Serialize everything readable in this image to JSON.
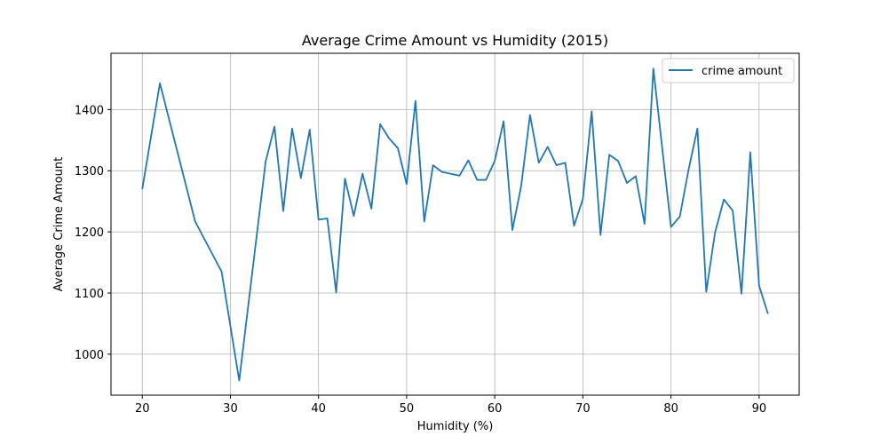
{
  "chart_data": {
    "type": "line",
    "title": "Average Crime Amount vs Humidity (2015)",
    "xlabel": "Humidity (%)",
    "ylabel": "Average Crime Amount",
    "xlim": [
      16.45,
      94.55
    ],
    "ylim": [
      933,
      1492
    ],
    "xticks": [
      20,
      30,
      40,
      50,
      60,
      70,
      80,
      90
    ],
    "yticks": [
      1000,
      1100,
      1200,
      1300,
      1400
    ],
    "grid": true,
    "legend_position": "top-right",
    "line_color": "#1f77b4",
    "series": [
      {
        "name": "crime amount",
        "x": [
          20,
          22,
          26,
          29,
          31,
          34,
          35,
          36,
          37,
          38,
          39,
          40,
          41,
          42,
          43,
          44,
          45,
          46,
          47,
          48,
          49,
          50,
          51,
          52,
          53,
          54,
          56,
          57,
          58,
          59,
          60,
          61,
          62,
          63,
          64,
          65,
          66,
          67,
          68,
          69,
          70,
          71,
          72,
          73,
          74,
          75,
          76,
          77,
          78,
          80,
          81,
          82,
          83,
          84,
          85,
          86,
          87,
          88,
          89,
          90,
          91
        ],
        "y": [
          1270,
          1443,
          1217,
          1135,
          957,
          1315,
          1372,
          1234,
          1369,
          1288,
          1367,
          1220,
          1222,
          1101,
          1287,
          1226,
          1295,
          1238,
          1376,
          1353,
          1337,
          1278,
          1414,
          1217,
          1309,
          1298,
          1292,
          1317,
          1285,
          1285,
          1316,
          1381,
          1203,
          1275,
          1391,
          1313,
          1339,
          1309,
          1313,
          1210,
          1254,
          1397,
          1195,
          1326,
          1316,
          1280,
          1291,
          1213,
          1467,
          1208,
          1225,
          1302,
          1369,
          1102,
          1199,
          1253,
          1235,
          1099,
          1330,
          1112,
          1066
        ]
      }
    ]
  }
}
